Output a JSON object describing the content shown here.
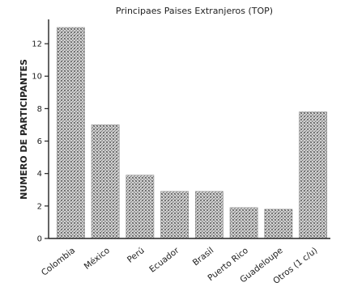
{
  "chart_data": {
    "type": "bar",
    "title": "Principaes Paises Extranjeros (TOP)",
    "xlabel": "",
    "ylabel": "NUMERO DE PARTICIPANTES",
    "categories": [
      "Colombia",
      "México",
      "Perú",
      "Ecuador",
      "Brasil",
      "Puerto Rico",
      "Guadeloupe",
      "Otros (1 c/u)"
    ],
    "values": [
      13,
      7,
      3.9,
      2.9,
      2.9,
      1.9,
      1.8,
      7.8
    ],
    "ylim": [
      0,
      13
    ],
    "yticks": [
      0,
      2,
      4,
      6,
      8,
      10,
      12
    ],
    "grid": false,
    "legend": "none",
    "bar_color": "#b8b8b8"
  }
}
